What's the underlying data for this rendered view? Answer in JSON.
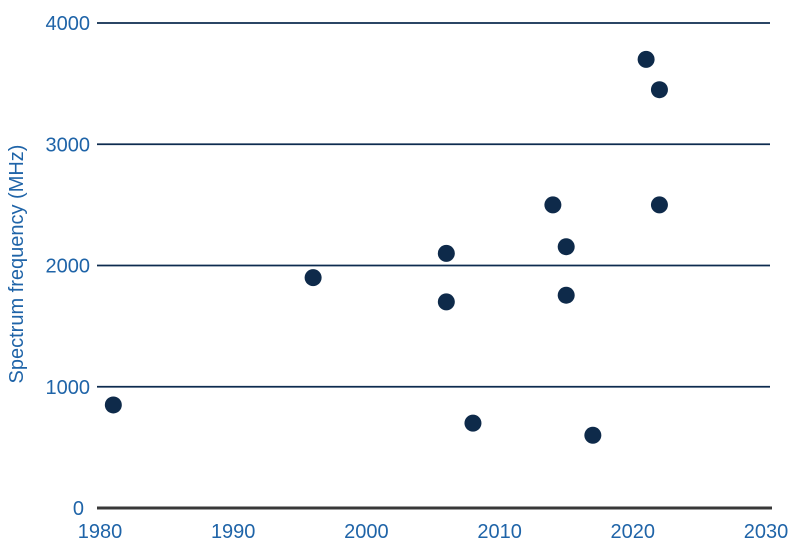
{
  "chart_data": {
    "type": "scatter",
    "title": "",
    "xlabel": "",
    "ylabel": "Spectrum frequency (MHz)",
    "xlim": [
      1980,
      2030
    ],
    "ylim": [
      0,
      4000
    ],
    "x_ticks": [
      1980,
      1990,
      2000,
      2010,
      2020,
      2030
    ],
    "y_ticks": [
      0,
      1000,
      2000,
      3000,
      4000
    ],
    "grid": "horizontal-only",
    "legend": "none",
    "points": [
      {
        "year": 1981,
        "mhz": 850
      },
      {
        "year": 1996,
        "mhz": 1900
      },
      {
        "year": 2006,
        "mhz": 2100
      },
      {
        "year": 2006,
        "mhz": 1700
      },
      {
        "year": 2008,
        "mhz": 700
      },
      {
        "year": 2014,
        "mhz": 2500
      },
      {
        "year": 2015,
        "mhz": 2155
      },
      {
        "year": 2015,
        "mhz": 1755
      },
      {
        "year": 2017,
        "mhz": 600
      },
      {
        "year": 2021,
        "mhz": 3700
      },
      {
        "year": 2022,
        "mhz": 3450
      },
      {
        "year": 2022,
        "mhz": 2500
      }
    ],
    "colors": {
      "point": "#0e2a4a",
      "gridline": "#0d2b4f",
      "axis_line": "#383838",
      "label_text": "#1f64a8",
      "background": "#ffffff"
    }
  }
}
